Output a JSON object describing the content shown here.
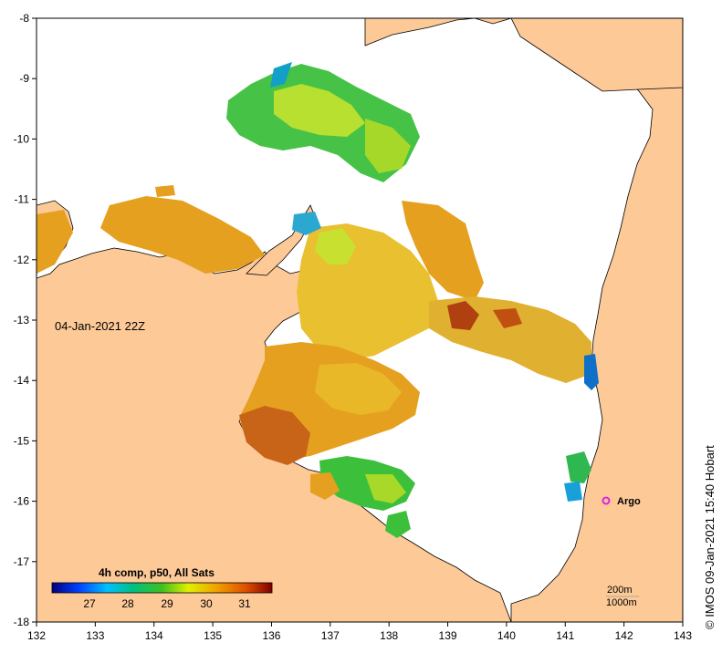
{
  "map": {
    "timestamp": "04-Jan-2021 22Z",
    "credit": "© IMOS 09-Jan-2021 15:40 Hobart",
    "argo_label": "Argo",
    "depth_legend": [
      "200m",
      "1000m"
    ],
    "colorbar": {
      "title": "4h comp, p50, All Sats",
      "ticks": [
        "27",
        "28",
        "29",
        "30",
        "31"
      ]
    },
    "lon_ticks": [
      "132",
      "133",
      "134",
      "135",
      "136",
      "137",
      "138",
      "139",
      "140",
      "141",
      "142",
      "143"
    ],
    "lat_ticks": [
      "-8",
      "-9",
      "-10",
      "-11",
      "-12",
      "-13",
      "-14",
      "-15",
      "-16",
      "-17",
      "-18"
    ],
    "colors": {
      "land": "#fcc997",
      "ocean": "#ffffff",
      "warm": "#e6a020",
      "argo": "#e020e0"
    }
  }
}
